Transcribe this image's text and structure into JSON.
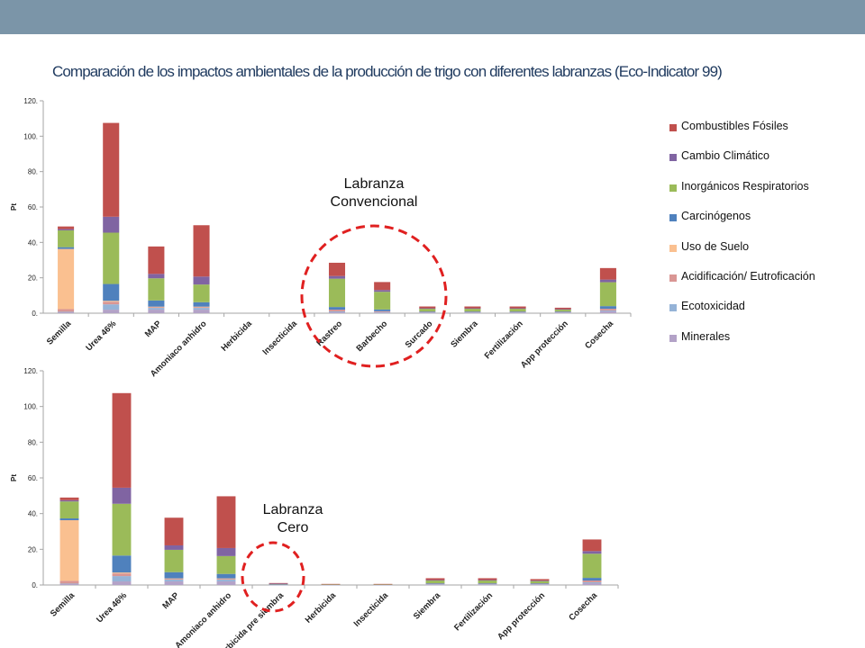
{
  "slide": {
    "title": "Comparación de los impactos ambientales de la producción de trigo con diferentes labranzas (Eco-Indicator 99)"
  },
  "colors": {
    "topbar": "#7b95a8",
    "highlight_circle": "#e02020"
  },
  "legend": {
    "placement": "right",
    "items": [
      {
        "label": "Combustibles Fósiles",
        "color": "#c0504d"
      },
      {
        "label": "Cambio Climático",
        "color": "#8064a2"
      },
      {
        "label": "Inorgánicos Respiratorios",
        "color": "#9bbb59"
      },
      {
        "label": "Carcinógenos",
        "color": "#4f81bd"
      },
      {
        "label": "Uso de Suelo",
        "color": "#fac090"
      },
      {
        "label": "Acidificación/ Eutroficación",
        "color": "#d99694"
      },
      {
        "label": "Ecotoxicidad",
        "color": "#95b3d7"
      },
      {
        "label": "Minerales",
        "color": "#b3a2c7"
      }
    ]
  },
  "annotations": {
    "convencional_line1": "Labranza",
    "convencional_line2": "Convencional",
    "cero_line1": "Labranza",
    "cero_line2": "Cero"
  },
  "chart_data": [
    {
      "type": "bar",
      "stacked": true,
      "ylabel": "Pt",
      "ylim": [
        0,
        120
      ],
      "yticks": [
        "0.",
        "20.",
        "40.",
        "60.",
        "80.",
        "100.",
        "120."
      ],
      "grid": false,
      "categories": [
        "Semilla",
        "Urea 46%",
        "MAP",
        "Amoniaco anhidro",
        "Herbicida",
        "Insecticida",
        "Rastreo",
        "Barbecho",
        "Surcado",
        "Siembra",
        "Fertilización",
        "App protección",
        "Cosecha"
      ],
      "series": [
        {
          "name": "Minerales",
          "values": [
            0.5,
            2,
            2,
            2,
            0,
            0,
            0.5,
            0.3,
            0.2,
            0.2,
            0.2,
            0.2,
            1
          ]
        },
        {
          "name": "Ecotoxicidad",
          "values": [
            0.3,
            3,
            1,
            1,
            0,
            0,
            0.5,
            0.3,
            0.2,
            0.2,
            0.2,
            0.2,
            0.5
          ]
        },
        {
          "name": "Acidificación/ Eutroficación",
          "values": [
            1.5,
            1.5,
            0.5,
            0.5,
            0,
            0,
            1,
            0.5,
            0.3,
            0.3,
            0.3,
            0.3,
            1
          ]
        },
        {
          "name": "Uso de Suelo",
          "values": [
            34,
            0.5,
            0.2,
            0.2,
            0,
            0,
            0,
            0,
            0,
            0,
            0,
            0,
            0
          ]
        },
        {
          "name": "Carcinógenos",
          "values": [
            1,
            9.5,
            3.5,
            2.5,
            0,
            0,
            1.5,
            1,
            0.3,
            0.3,
            0.3,
            0.3,
            1.5
          ]
        },
        {
          "name": "Inorgánicos Respiratorios",
          "values": [
            9.5,
            29,
            12.5,
            10,
            0,
            0,
            16,
            10,
            1.5,
            1.5,
            1.5,
            1,
            13.5
          ]
        },
        {
          "name": "Cambio Climático",
          "values": [
            0.7,
            9,
            2.5,
            4.5,
            0,
            0,
            1.5,
            1,
            0.3,
            0.3,
            0.3,
            0.3,
            1.5
          ]
        },
        {
          "name": "Combustibles Fósiles",
          "values": [
            1.5,
            53,
            15.5,
            29,
            0,
            0,
            7.5,
            4.5,
            1,
            1,
            1,
            0.8,
            6.5
          ]
        }
      ]
    },
    {
      "type": "bar",
      "stacked": true,
      "ylabel": "Pt",
      "ylim": [
        0,
        120
      ],
      "yticks": [
        "0.",
        "20.",
        "40.",
        "60.",
        "80.",
        "100.",
        "120."
      ],
      "grid": false,
      "categories": [
        "Semilla",
        "Urea 46%",
        "MAP",
        "Amoniaco anhidro",
        "Herbicida pre siembra",
        "Herbicida",
        "Insecticida",
        "Siembra",
        "Fertilización",
        "App protección",
        "Cosecha"
      ],
      "series": [
        {
          "name": "Minerales",
          "values": [
            0.5,
            2,
            2,
            2,
            0.1,
            0.1,
            0.1,
            0.2,
            0.2,
            0.2,
            1
          ]
        },
        {
          "name": "Ecotoxicidad",
          "values": [
            0.3,
            3,
            1,
            1,
            0.1,
            0.1,
            0.1,
            0.2,
            0.2,
            0.2,
            0.5
          ]
        },
        {
          "name": "Acidificación/ Eutroficación",
          "values": [
            1.5,
            1.5,
            0.5,
            0.5,
            0.1,
            0,
            0,
            0.3,
            0.3,
            0.3,
            1
          ]
        },
        {
          "name": "Uso de Suelo",
          "values": [
            34,
            0.5,
            0.2,
            0.2,
            0,
            0,
            0,
            0,
            0,
            0,
            0
          ]
        },
        {
          "name": "Carcinógenos",
          "values": [
            1,
            9.5,
            3.5,
            2.5,
            0.1,
            0,
            0,
            0.3,
            0.3,
            0.3,
            1.5
          ]
        },
        {
          "name": "Inorgánicos Respiratorios",
          "values": [
            9.5,
            29,
            12.5,
            10,
            0.3,
            0.2,
            0.2,
            1.5,
            1.5,
            1.2,
            13.5
          ]
        },
        {
          "name": "Cambio Climático",
          "values": [
            0.7,
            9,
            2.5,
            4.5,
            0.1,
            0,
            0,
            0.3,
            0.3,
            0.3,
            1.5
          ]
        },
        {
          "name": "Combustibles Fósiles",
          "values": [
            1.5,
            53,
            15.5,
            29,
            0.3,
            0.2,
            0.2,
            1,
            1,
            0.8,
            6.5
          ]
        }
      ]
    }
  ]
}
